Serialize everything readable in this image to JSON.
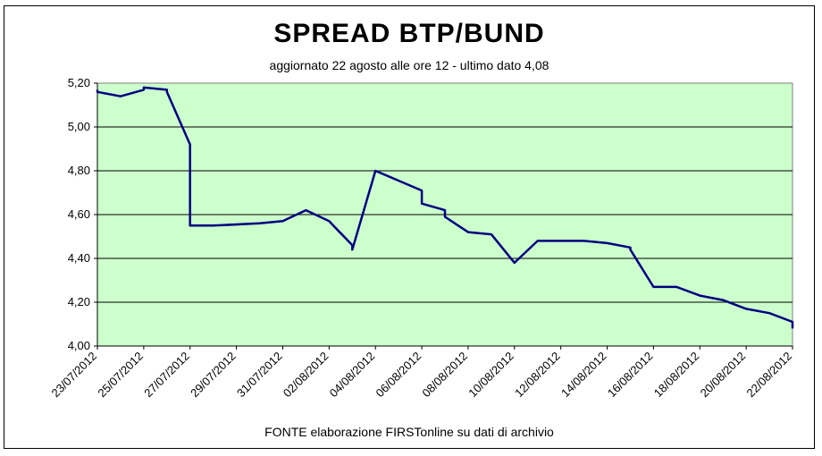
{
  "chart_data": {
    "type": "line",
    "title": "SPREAD  BTP/BUND",
    "subtitle": "aggiornato 22 agosto alle ore 12  -  ultimo dato 4,08",
    "source": "FONTE elaborazione FIRSTonline su dati di archivio",
    "xlabel": "",
    "ylabel": "",
    "ylim": [
      4.0,
      5.2
    ],
    "y_ticks": [
      "4,00",
      "4,20",
      "4,40",
      "4,60",
      "4,80",
      "5,00",
      "5,20"
    ],
    "x_tick_labels": [
      "23/07/2012",
      "25/07/2012",
      "27/07/2012",
      "29/07/2012",
      "31/07/2012",
      "02/08/2012",
      "04/08/2012",
      "06/08/2012",
      "08/08/2012",
      "10/08/2012",
      "12/08/2012",
      "14/08/2012",
      "16/08/2012",
      "18/08/2012",
      "20/08/2012",
      "22/08/2012"
    ],
    "x_range": [
      "23/07/2012",
      "22/08/2012"
    ],
    "grid": true,
    "plot_background": "#ccffcc",
    "line_color": "#000080",
    "series": [
      {
        "name": "",
        "x": [
          "23/07/2012",
          "23/07/2012",
          "24/07/2012",
          "24/07/2012",
          "25/07/2012",
          "25/07/2012",
          "26/07/2012",
          "26/07/2012",
          "27/07/2012",
          "27/07/2012",
          "28/07/2012",
          "28/07/2012",
          "30/07/2012",
          "31/07/2012",
          "31/07/2012",
          "01/08/2012",
          "02/08/2012",
          "03/08/2012",
          "03/08/2012",
          "04/08/2012",
          "06/08/2012",
          "06/08/2012",
          "07/08/2012",
          "07/08/2012",
          "08/08/2012",
          "09/08/2012",
          "09/08/2012",
          "10/08/2012",
          "10/08/2012",
          "11/08/2012",
          "13/08/2012",
          "14/08/2012",
          "14/08/2012",
          "15/08/2012",
          "15/08/2012",
          "16/08/2012",
          "17/08/2012",
          "17/08/2012",
          "18/08/2012",
          "19/08/2012",
          "20/08/2012",
          "21/08/2012",
          "22/08/2012",
          "22/08/2012"
        ],
        "values": [
          5.17,
          5.16,
          5.14,
          5.14,
          5.17,
          5.18,
          5.17,
          5.16,
          4.92,
          4.55,
          4.55,
          4.55,
          4.56,
          4.57,
          4.57,
          4.62,
          4.57,
          4.46,
          4.44,
          4.8,
          4.71,
          4.65,
          4.62,
          4.59,
          4.52,
          4.51,
          4.51,
          4.38,
          4.38,
          4.48,
          4.48,
          4.47,
          4.47,
          4.45,
          4.44,
          4.27,
          4.27,
          4.27,
          4.23,
          4.21,
          4.17,
          4.15,
          4.11,
          4.08
        ]
      }
    ]
  }
}
